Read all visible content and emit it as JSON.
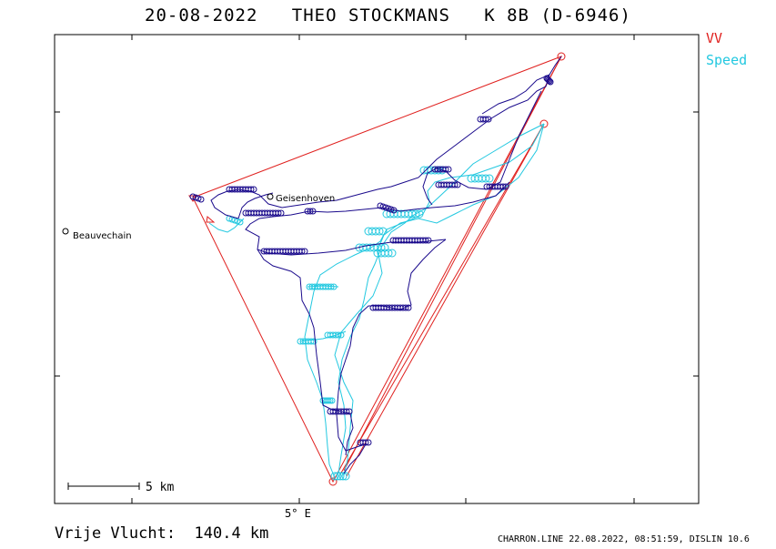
{
  "title": "20-08-2022   THEO STOCKMANS   K 8B (D-6946)",
  "legend": {
    "vv": "VV",
    "speed": "Speed",
    "vv_color": "#e0201e",
    "speed_color": "#22c8e0",
    "track_color": "#1a0a8c"
  },
  "places": [
    {
      "name": "Beauvechain"
    },
    {
      "name": "Geisenhoven"
    }
  ],
  "scale": {
    "label": "5  km"
  },
  "axis": {
    "x_label": "5° E"
  },
  "footer": {
    "distance": "Vrije Vlucht:  140.4 km",
    "software": "CHARRON.LINE 22.08.2022, 08:51:59, DISLIN 10.6"
  }
}
